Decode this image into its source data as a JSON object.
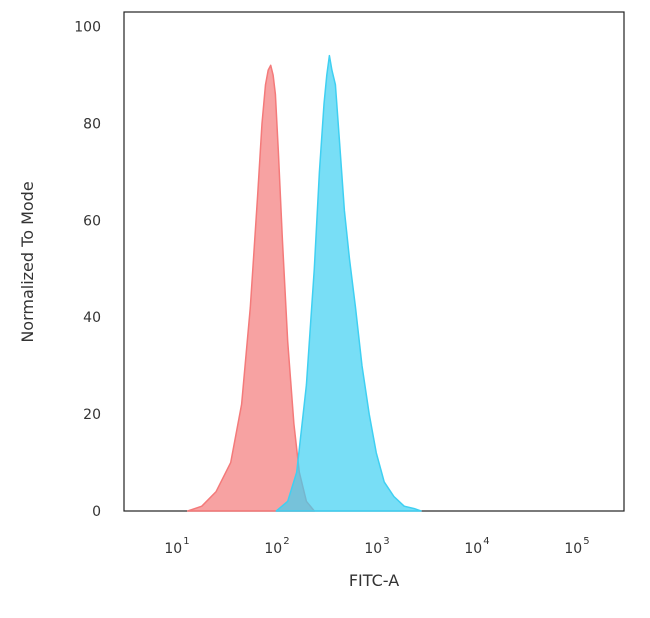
{
  "chart_data": {
    "type": "area",
    "xlabel": "FITC-A",
    "ylabel": "Normalized To Mode",
    "x_scale": "log",
    "xlim": [
      3,
      300000
    ],
    "ylim": [
      0,
      103
    ],
    "x_ticks": [
      {
        "value": 10,
        "base": "10",
        "exp": "1"
      },
      {
        "value": 100,
        "base": "10",
        "exp": "2"
      },
      {
        "value": 1000,
        "base": "10",
        "exp": "3"
      },
      {
        "value": 10000,
        "base": "10",
        "exp": "4"
      },
      {
        "value": 100000,
        "base": "10",
        "exp": "5"
      }
    ],
    "y_ticks": [
      0,
      20,
      40,
      60,
      80,
      100
    ],
    "grid": false,
    "series": [
      {
        "color": "#f47a7a",
        "x": [
          13,
          18,
          25,
          35,
          45,
          55,
          65,
          72,
          78,
          83,
          88,
          93,
          98,
          105,
          115,
          130,
          150,
          170,
          200,
          240
        ],
        "y": [
          0,
          1,
          4,
          10,
          22,
          42,
          65,
          80,
          88,
          91,
          92,
          90,
          86,
          74,
          56,
          35,
          18,
          8,
          2,
          0
        ]
      },
      {
        "color": "#3fd0f2",
        "x": [
          100,
          130,
          160,
          200,
          240,
          270,
          300,
          320,
          340,
          360,
          390,
          430,
          480,
          540,
          620,
          720,
          850,
          1000,
          1200,
          1500,
          1900,
          2400,
          2800
        ],
        "y": [
          0,
          2,
          8,
          26,
          50,
          70,
          84,
          90,
          94,
          91,
          88,
          76,
          62,
          52,
          42,
          30,
          20,
          12,
          6,
          3,
          1,
          0.5,
          0
        ]
      }
    ]
  }
}
